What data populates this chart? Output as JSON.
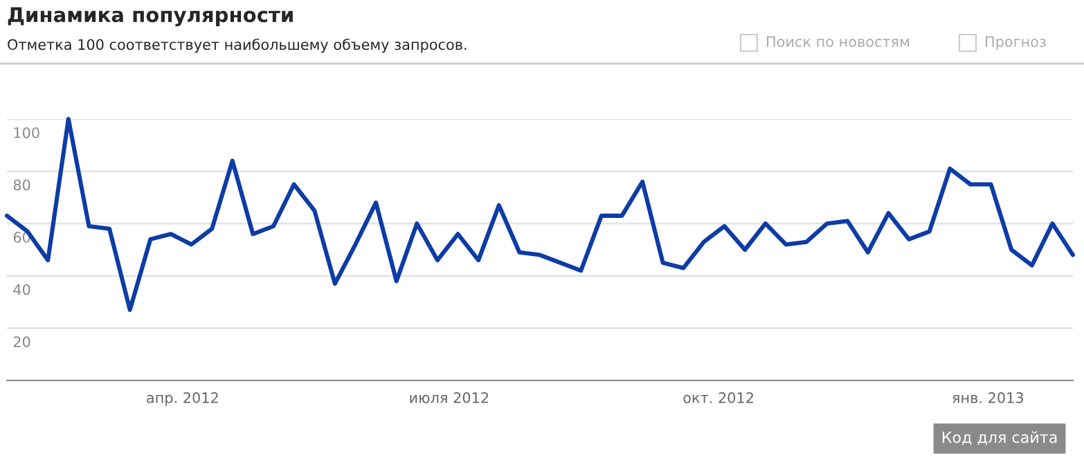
{
  "chart_data": {
    "type": "line",
    "title": "Динамика популярности",
    "subtitle": "Отметка 100 соответствует наибольшему объему запросов.",
    "annotations": [
      "Поиск по новостям",
      "Прогноз",
      "Код для сайта"
    ],
    "x": [
      "2012-02-01",
      "2012-02-08",
      "2012-02-15",
      "2012-02-22",
      "2012-02-29",
      "2012-03-07",
      "2012-03-14",
      "2012-03-21",
      "2012-03-28",
      "2012-04-04",
      "2012-04-11",
      "2012-04-18",
      "2012-04-25",
      "2012-05-02",
      "2012-05-09",
      "2012-05-16",
      "2012-05-23",
      "2012-05-30",
      "2012-06-06",
      "2012-06-13",
      "2012-06-20",
      "2012-06-27",
      "2012-07-04",
      "2012-07-11",
      "2012-07-18",
      "2012-07-25",
      "2012-08-01",
      "2012-08-08",
      "2012-08-15",
      "2012-08-22",
      "2012-08-29",
      "2012-09-05",
      "2012-09-12",
      "2012-09-19",
      "2012-09-26",
      "2012-10-03",
      "2012-10-10",
      "2012-10-17",
      "2012-10-24",
      "2012-10-31",
      "2012-11-07",
      "2012-11-14",
      "2012-11-21",
      "2012-11-28",
      "2012-12-05",
      "2012-12-12",
      "2012-12-19",
      "2012-12-26",
      "2013-01-02",
      "2013-01-09",
      "2013-01-16",
      "2013-01-23",
      "2013-01-30"
    ],
    "series": [
      {
        "color": "#0d3ca6",
        "values": [
          63,
          57,
          46,
          100,
          59,
          58,
          27,
          54,
          56,
          52,
          58,
          84,
          56,
          59,
          75,
          65,
          37,
          52,
          68,
          38,
          60,
          46,
          56,
          46,
          67,
          49,
          48,
          45,
          42,
          63,
          63,
          76,
          45,
          43,
          53,
          59,
          50,
          60,
          52,
          53,
          60,
          61,
          49,
          64,
          54,
          57,
          81,
          75,
          75,
          50,
          44,
          60,
          48
        ]
      }
    ],
    "xlim": [
      "2012-02-01",
      "2013-01-30"
    ],
    "xticks": [
      {
        "value": "2012-04-01",
        "label": "апр. 2012"
      },
      {
        "value": "2012-07-01",
        "label": "июля 2012"
      },
      {
        "value": "2012-10-01",
        "label": "окт. 2012"
      },
      {
        "value": "2013-01-01",
        "label": "янв. 2013"
      }
    ],
    "ylim": [
      0,
      100
    ],
    "yticks": [
      {
        "value": 0,
        "label": null
      },
      20,
      40,
      60,
      80,
      100
    ],
    "grid": "y",
    "legend": false,
    "marker": "none",
    "line_style": "solid"
  }
}
